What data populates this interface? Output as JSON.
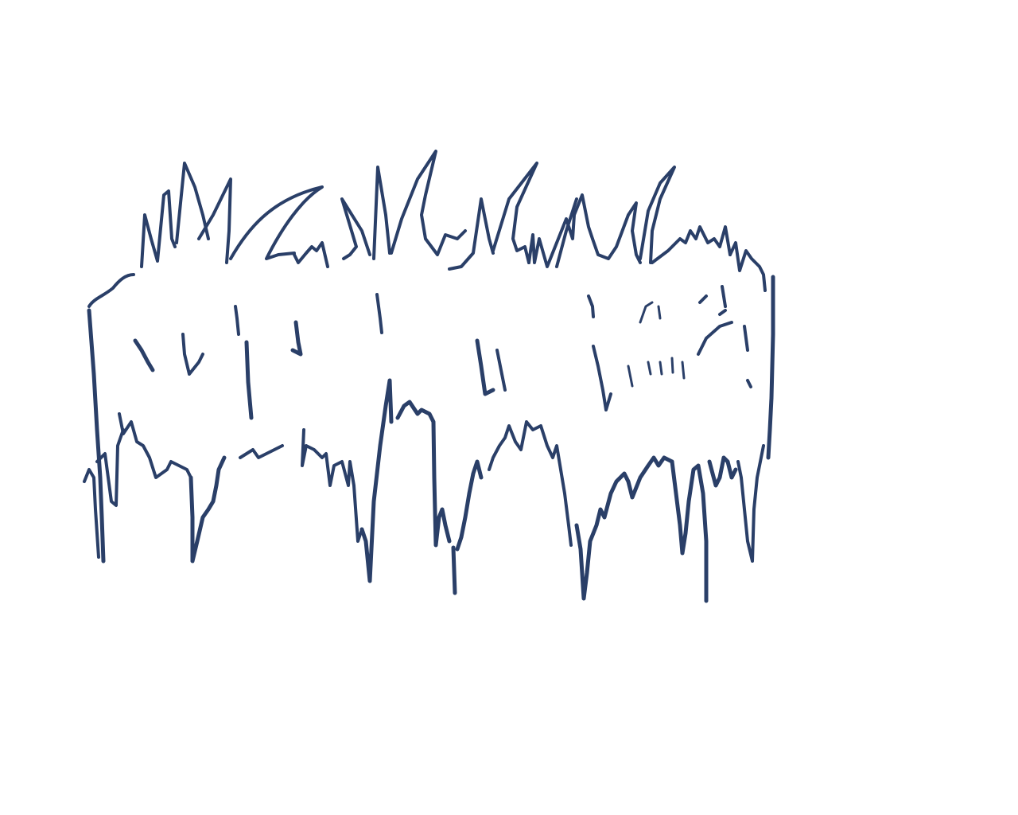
{
  "drawing": {
    "subject": "grass-hedge-sketch",
    "stroke_color": "#2a3f68",
    "background_color": "#ffffff"
  }
}
